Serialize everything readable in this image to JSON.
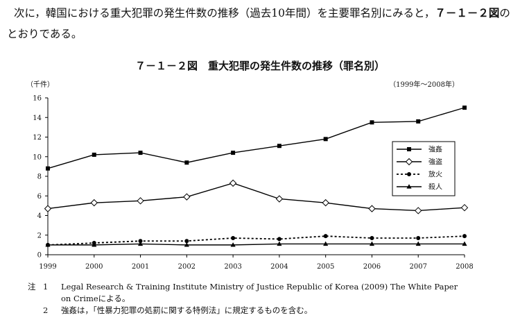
{
  "intro": {
    "text": "次に，韓国における重大犯罪の発生件数の推移（過去10年間）を主要罪名別にみると，",
    "figure_ref": "７－１－２図",
    "text_end": "のとおりである。"
  },
  "chart_data": {
    "type": "line",
    "title": "７－１－２図　重大犯罪の発生件数の推移（罪名別）",
    "ylabel": "（千件）",
    "period": "（1999年～2008年）",
    "x": [
      "1999",
      "2000",
      "2001",
      "2002",
      "2003",
      "2004",
      "2005",
      "2006",
      "2007",
      "2008"
    ],
    "ylim": [
      0,
      16
    ],
    "yticks": [
      "0",
      "2",
      "4",
      "6",
      "8",
      "10",
      "12",
      "14",
      "16"
    ],
    "legend_position": "right",
    "series": [
      {
        "name": "強姦",
        "marker": "square",
        "dash": "solid",
        "values": [
          8.8,
          10.2,
          10.4,
          9.4,
          10.4,
          11.1,
          11.8,
          13.5,
          13.6,
          15.0
        ]
      },
      {
        "name": "強盗",
        "marker": "diamond",
        "dash": "solid",
        "values": [
          4.7,
          5.3,
          5.5,
          5.9,
          7.3,
          5.7,
          5.3,
          4.7,
          4.5,
          4.8
        ]
      },
      {
        "name": "放火",
        "marker": "circle",
        "dash": "dotted",
        "values": [
          1.0,
          1.2,
          1.4,
          1.4,
          1.7,
          1.6,
          1.9,
          1.7,
          1.7,
          1.9
        ]
      },
      {
        "name": "殺人",
        "marker": "triangle",
        "dash": "solid",
        "values": [
          1.0,
          1.0,
          1.1,
          1.0,
          1.0,
          1.1,
          1.1,
          1.1,
          1.1,
          1.1
        ]
      }
    ]
  },
  "notes": {
    "label": "注",
    "n1": "1",
    "t1a": "Legal Research & Training Institute Ministry of Justice Republic of Korea (2009) The White Paper",
    "t1b": "on Crimeによる。",
    "n2": "2",
    "t2": "強姦は，「性暴力犯罪の処罰に関する特例法」に規定するものを含む。"
  }
}
